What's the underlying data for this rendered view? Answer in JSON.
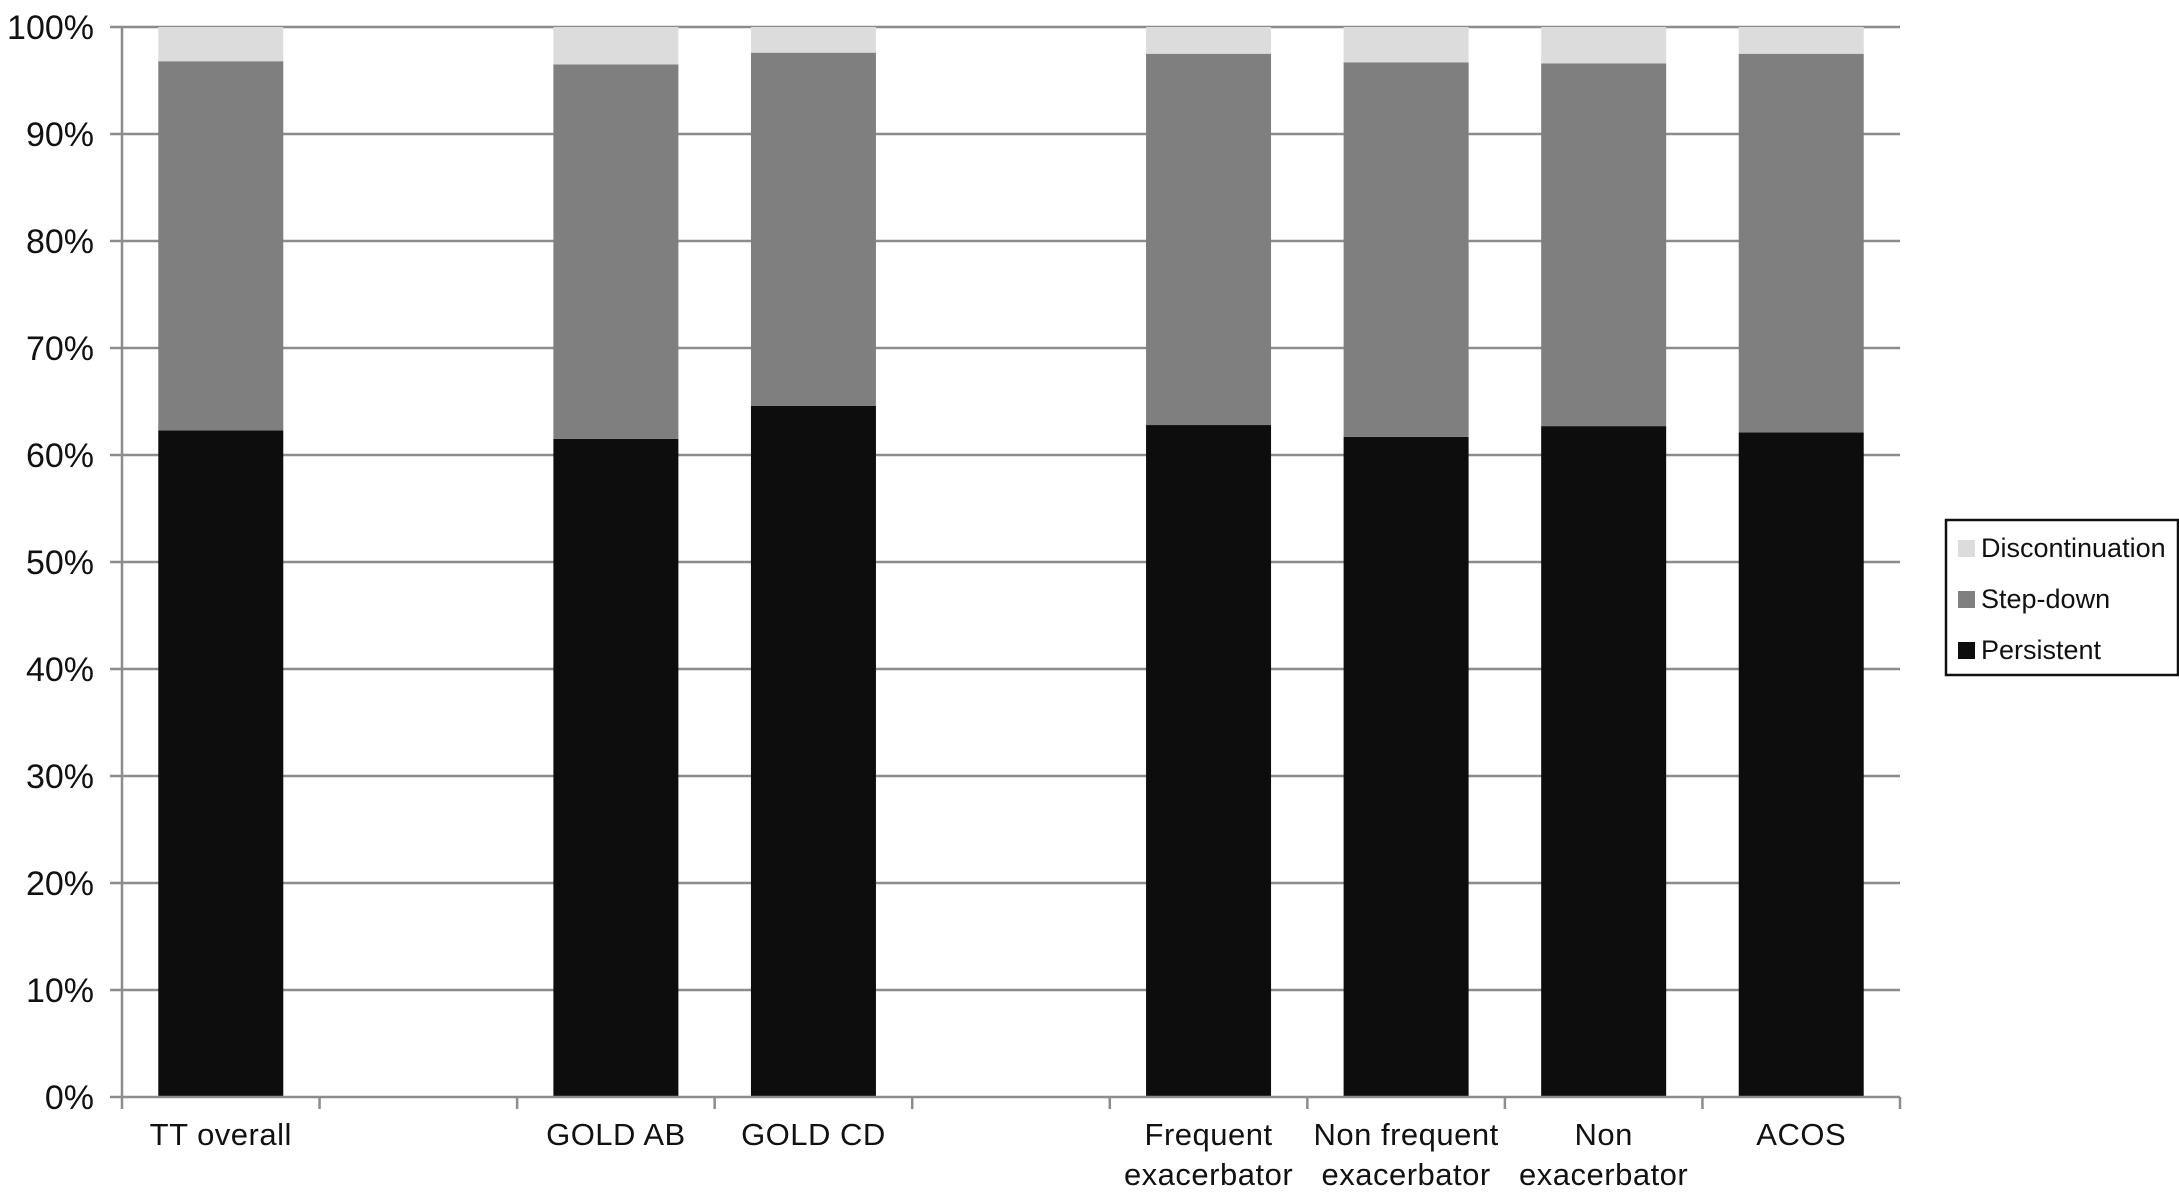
{
  "chart_data": {
    "type": "bar",
    "stacked": true,
    "percent_axis": true,
    "title": "",
    "xlabel": "",
    "ylabel": "",
    "ylim": [
      0,
      100
    ],
    "y_ticks": [
      "0%",
      "10%",
      "20%",
      "30%",
      "40%",
      "50%",
      "60%",
      "70%",
      "80%",
      "90%",
      "100%"
    ],
    "grid": true,
    "legend_position": "right",
    "slots": 9,
    "categories": [
      {
        "slot": 0,
        "label_lines": [
          "TT overall"
        ]
      },
      {
        "slot": 2,
        "label_lines": [
          "GOLD AB"
        ]
      },
      {
        "slot": 3,
        "label_lines": [
          "GOLD CD"
        ]
      },
      {
        "slot": 5,
        "label_lines": [
          "Frequent",
          "exacerbator"
        ]
      },
      {
        "slot": 6,
        "label_lines": [
          "Non frequent",
          "exacerbator"
        ]
      },
      {
        "slot": 7,
        "label_lines": [
          "Non",
          "exacerbator"
        ]
      },
      {
        "slot": 8,
        "label_lines": [
          "ACOS"
        ]
      }
    ],
    "series": [
      {
        "name": "Persistent",
        "color": "#0d0d0d",
        "values": [
          62.3,
          61.5,
          64.6,
          62.8,
          61.7,
          62.7,
          62.1
        ]
      },
      {
        "name": "Step-down",
        "color": "#7f7f7f",
        "values": [
          34.5,
          35.0,
          33.0,
          34.7,
          35.0,
          33.9,
          35.4
        ]
      },
      {
        "name": "Discontinuation",
        "color": "#dcdcdc",
        "values": [
          3.2,
          3.5,
          2.4,
          2.5,
          3.3,
          3.4,
          2.5
        ]
      }
    ],
    "legend_order": [
      "Discontinuation",
      "Step-down",
      "Persistent"
    ]
  }
}
